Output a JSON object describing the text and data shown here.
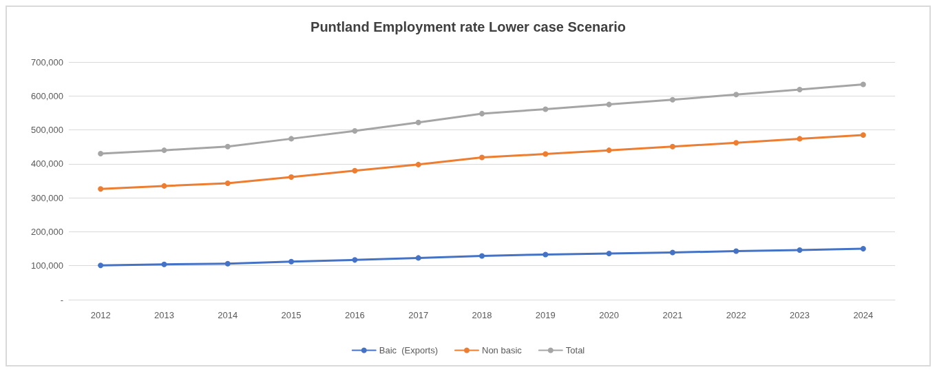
{
  "chart_data": {
    "type": "line",
    "title": "Puntland Employment rate Lower case Scenario",
    "categories": [
      "2012",
      "2013",
      "2014",
      "2015",
      "2016",
      "2017",
      "2018",
      "2019",
      "2020",
      "2021",
      "2022",
      "2023",
      "2024"
    ],
    "series": [
      {
        "name": "Baic  (Exports)",
        "color": "#4472c4",
        "values": [
          101000,
          104000,
          106000,
          112000,
          117000,
          123000,
          129000,
          133000,
          136000,
          139000,
          143000,
          146000,
          150000
        ]
      },
      {
        "name": "Non basic",
        "color": "#ed7d31",
        "values": [
          326000,
          335000,
          343000,
          361000,
          380000,
          398000,
          419000,
          429000,
          440000,
          451000,
          462000,
          474000,
          485000
        ]
      },
      {
        "name": "Total",
        "color": "#a5a5a5",
        "values": [
          430000,
          440000,
          451000,
          474000,
          497000,
          522000,
          548000,
          561000,
          575000,
          589000,
          604000,
          619000,
          634000
        ]
      }
    ],
    "ylim": [
      0,
      700000
    ],
    "yticks": [
      {
        "value": 0,
        "label": "-"
      },
      {
        "value": 100000,
        "label": "100,000"
      },
      {
        "value": 200000,
        "label": "200,000"
      },
      {
        "value": 300000,
        "label": "300,000"
      },
      {
        "value": 400000,
        "label": "400,000"
      },
      {
        "value": 500000,
        "label": "500,000"
      },
      {
        "value": 600000,
        "label": "600,000"
      },
      {
        "value": 700000,
        "label": "700,000"
      }
    ],
    "grid": "y",
    "legend": "bottom",
    "marker": "circle",
    "line_style": "solid"
  }
}
